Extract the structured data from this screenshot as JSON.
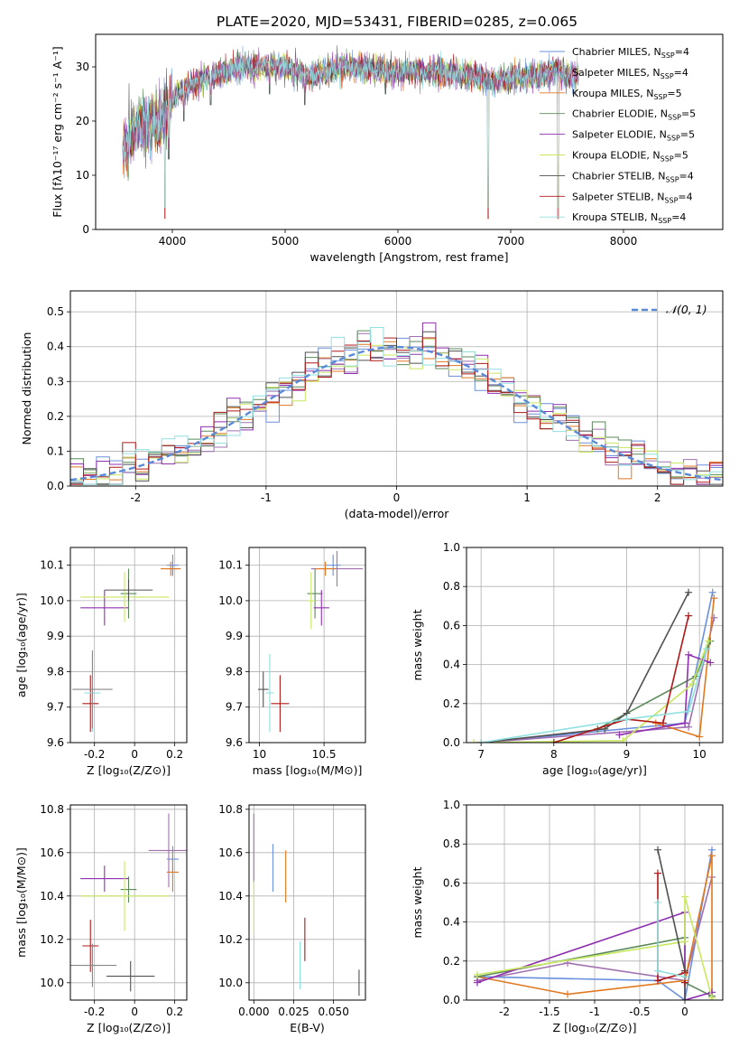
{
  "figure_title": "PLATE=2020, MJD=53431, FIBERID=0285, z=0.065",
  "series": [
    {
      "name": "Chabrier MILES, N",
      "sub": "SSP",
      "suffix": "=4",
      "color": "#6a8fdc"
    },
    {
      "name": "Salpeter MILES, N",
      "sub": "SSP",
      "suffix": "=4",
      "color": "#a070b0"
    },
    {
      "name": "Kroupa MILES, N",
      "sub": "SSP",
      "suffix": "=5",
      "color": "#e07820"
    },
    {
      "name": "Chabrier ELODIE, N",
      "sub": "SSP",
      "suffix": "=5",
      "color": "#5a8a5a"
    },
    {
      "name": "Salpeter ELODIE, N",
      "sub": "SSP",
      "suffix": "=5",
      "color": "#9030b0"
    },
    {
      "name": "Kroupa ELODIE, N",
      "sub": "SSP",
      "suffix": "=5",
      "color": "#c8e860"
    },
    {
      "name": "Chabrier STELIB, N",
      "sub": "SSP",
      "suffix": "=4",
      "color": "#505050"
    },
    {
      "name": "Salpeter STELIB, N",
      "sub": "SSP",
      "suffix": "=4",
      "color": "#b01818"
    },
    {
      "name": "Kroupa STELIB, N",
      "sub": "SSP",
      "suffix": "=4",
      "color": "#90e0e0"
    }
  ],
  "chart_data": [
    {
      "id": "spectrum",
      "type": "line",
      "xlabel": "wavelength [Angstrom, rest frame]",
      "ylabel": "Flux [fλ10⁻¹⁷ erg cm⁻² s⁻¹ A⁻¹]",
      "xlim": [
        3320,
        8880
      ],
      "ylim": [
        0,
        36
      ],
      "xticks": [
        4000,
        5000,
        6000,
        7000,
        8000
      ],
      "yticks": [
        0,
        10,
        20,
        30
      ],
      "grid": false,
      "legend": "upper-right",
      "continuum_points": [
        [
          3560,
          15
        ],
        [
          3700,
          19
        ],
        [
          3900,
          20
        ],
        [
          4000,
          24
        ],
        [
          4100,
          26
        ],
        [
          4300,
          28
        ],
        [
          4600,
          30
        ],
        [
          5000,
          30
        ],
        [
          5200,
          28
        ],
        [
          5500,
          30
        ],
        [
          6000,
          29
        ],
        [
          6500,
          29
        ],
        [
          6800,
          27.5
        ],
        [
          7100,
          28
        ],
        [
          7400,
          29
        ],
        [
          7600,
          28
        ]
      ],
      "line_dips": [
        [
          3933,
          0
        ],
        [
          3968,
          13
        ],
        [
          4102,
          20
        ],
        [
          4340,
          23
        ],
        [
          4861,
          25
        ],
        [
          5175,
          23
        ],
        [
          5890,
          25
        ],
        [
          6563,
          26
        ],
        [
          6800,
          0
        ],
        [
          7420,
          0
        ]
      ]
    },
    {
      "id": "residuals",
      "type": "area",
      "xlabel": "(data-model)/error",
      "ylabel": "Normed distribution",
      "xlim": [
        -2.5,
        2.5
      ],
      "ylim": [
        0,
        0.56
      ],
      "xticks": [
        -2,
        -1,
        0,
        1,
        2
      ],
      "yticks": [
        0.0,
        0.1,
        0.2,
        0.3,
        0.4,
        0.5
      ],
      "grid": true,
      "legend": "upper-right",
      "reference": {
        "label": "𝒩(0, 1)",
        "color": "#5a8ad8"
      },
      "histogram_bins": [
        -2.5,
        2.5,
        0.1
      ]
    },
    {
      "id": "age_vs_Z",
      "type": "scatter",
      "xlabel": "Z [log₁₀(Z/Z⊙)]",
      "ylabel": "age  [log₁₀(age/yr)]",
      "xlim": [
        -0.32,
        0.26
      ],
      "ylim": [
        9.6,
        10.15
      ],
      "xticks": [
        -0.2,
        0.0,
        0.2
      ],
      "yticks": [
        9.6,
        9.7,
        9.8,
        9.9,
        10.0,
        10.1
      ],
      "grid": true,
      "points": [
        {
          "s": 0,
          "x": 0.19,
          "y": 10.1,
          "xerr": 0.03,
          "yerr": 0.03
        },
        {
          "s": 1,
          "x": 0.19,
          "y": 10.09,
          "xerr": 0.03,
          "yerr": 0.02
        },
        {
          "s": 2,
          "x": 0.18,
          "y": 10.09,
          "xerr": 0.05,
          "yerr": 0.02
        },
        {
          "s": 3,
          "x": -0.03,
          "y": 10.02,
          "xerr": 0.04,
          "yerr": 0.07
        },
        {
          "s": 4,
          "x": -0.15,
          "y": 9.98,
          "xerr": 0.12,
          "yerr": 0.05
        },
        {
          "s": 5,
          "x": -0.05,
          "y": 10.01,
          "xerr": 0.22,
          "yerr": 0.07
        },
        {
          "s": 6,
          "x": -0.03,
          "y": 10.03,
          "xerr": 0.12,
          "yerr": 0.03
        },
        {
          "s": 7,
          "x": -0.22,
          "y": 9.71,
          "xerr": 0.04,
          "yerr": 0.08
        },
        {
          "s": 8,
          "x": -0.21,
          "y": 9.74,
          "xerr": 0.04,
          "yerr": 0.11
        },
        {
          "s": 9,
          "x": -0.21,
          "y": 9.75,
          "xerr": 0.1,
          "yerr": 0.11
        }
      ]
    },
    {
      "id": "age_vs_mass",
      "type": "scatter",
      "xlabel": "mass [log₁₀(M/M⊙)]",
      "ylabel": "",
      "xlim": [
        9.92,
        10.82
      ],
      "ylim": [
        9.6,
        10.15
      ],
      "xticks": [
        10.0,
        10.5
      ],
      "yticks": [
        9.6,
        9.7,
        9.8,
        9.9,
        10.0,
        10.1
      ],
      "grid": true,
      "points": [
        {
          "s": 0,
          "x": 10.57,
          "y": 10.1,
          "xerr": 0.06,
          "yerr": 0.03
        },
        {
          "s": 1,
          "x": 10.6,
          "y": 10.09,
          "xerr": 0.2,
          "yerr": 0.05
        },
        {
          "s": 2,
          "x": 10.51,
          "y": 10.09,
          "xerr": 0.08,
          "yerr": 0.02
        },
        {
          "s": 3,
          "x": 10.43,
          "y": 10.02,
          "xerr": 0.06,
          "yerr": 0.07
        },
        {
          "s": 4,
          "x": 10.48,
          "y": 9.98,
          "xerr": 0.06,
          "yerr": 0.05
        },
        {
          "s": 5,
          "x": 10.4,
          "y": 10.0,
          "xerr": 0.03,
          "yerr": 0.08
        },
        {
          "s": 6,
          "x": 10.03,
          "y": 9.75,
          "xerr": 0.04,
          "yerr": 0.05
        },
        {
          "s": 7,
          "x": 10.16,
          "y": 9.71,
          "xerr": 0.07,
          "yerr": 0.08
        },
        {
          "s": 8,
          "x": 10.08,
          "y": 9.74,
          "xerr": 0.03,
          "yerr": 0.11
        }
      ]
    },
    {
      "id": "weight_vs_age",
      "type": "line",
      "xlabel": "age  [log₁₀(age/yr)]",
      "ylabel": "mass weight",
      "xlim": [
        6.8,
        10.32
      ],
      "ylim": [
        0,
        1.0
      ],
      "xticks": [
        7,
        8,
        9,
        10
      ],
      "yticks": [
        0.0,
        0.2,
        0.4,
        0.6,
        0.8,
        1.0
      ],
      "grid": true,
      "lines": [
        {
          "s": 0,
          "x": [
            7.0,
            9.8,
            10.18
          ],
          "y": [
            0.0,
            0.1,
            0.77
          ]
        },
        {
          "s": 1,
          "x": [
            7.0,
            9.85,
            10.2
          ],
          "y": [
            0.0,
            0.08,
            0.64
          ]
        },
        {
          "s": 2,
          "x": [
            9.4,
            10.0,
            10.2
          ],
          "y": [
            0.1,
            0.03,
            0.74
          ]
        },
        {
          "s": 3,
          "x": [
            8.6,
            9.95,
            10.15
          ],
          "y": [
            0.07,
            0.34,
            0.52
          ]
        },
        {
          "s": 4,
          "x": [
            8.9,
            9.8,
            9.85,
            10.15
          ],
          "y": [
            0.04,
            0.1,
            0.45,
            0.41
          ]
        },
        {
          "s": 5,
          "x": [
            6.9,
            8.95,
            9.9,
            10.12
          ],
          "y": [
            0.0,
            0.01,
            0.3,
            0.52
          ]
        },
        {
          "s": 6,
          "x": [
            7.0,
            8.7,
            9.0,
            9.85
          ],
          "y": [
            0.0,
            0.07,
            0.15,
            0.77
          ]
        },
        {
          "s": 7,
          "x": [
            8.0,
            9.0,
            9.5,
            9.85
          ],
          "y": [
            0.0,
            0.12,
            0.1,
            0.65
          ]
        },
        {
          "s": 8,
          "x": [
            7.0,
            9.0,
            9.85,
            10.1
          ],
          "y": [
            0.0,
            0.12,
            0.16,
            0.48
          ]
        }
      ]
    },
    {
      "id": "mass_vs_Z",
      "type": "scatter",
      "xlabel": "Z [log₁₀(Z/Z⊙)]",
      "ylabel": "mass [log₁₀(M/M⊙)]",
      "xlim": [
        -0.32,
        0.26
      ],
      "ylim": [
        9.92,
        10.82
      ],
      "xticks": [
        -0.2,
        0.0,
        0.2
      ],
      "yticks": [
        10.0,
        10.2,
        10.4,
        10.6,
        10.8
      ],
      "grid": true,
      "points": [
        {
          "s": 0,
          "x": 0.19,
          "y": 10.57,
          "xerr": 0.03,
          "yerr": 0.06
        },
        {
          "s": 1,
          "x": 0.17,
          "y": 10.61,
          "xerr": 0.1,
          "yerr": 0.17
        },
        {
          "s": 2,
          "x": 0.19,
          "y": 10.51,
          "xerr": 0.03,
          "yerr": 0.09
        },
        {
          "s": 3,
          "x": -0.03,
          "y": 10.43,
          "xerr": 0.04,
          "yerr": 0.06
        },
        {
          "s": 4,
          "x": -0.15,
          "y": 10.48,
          "xerr": 0.12,
          "yerr": 0.06
        },
        {
          "s": 5,
          "x": -0.05,
          "y": 10.4,
          "xerr": 0.22,
          "yerr": 0.16
        },
        {
          "s": 6,
          "x": -0.02,
          "y": 10.03,
          "xerr": 0.12,
          "yerr": 0.07
        },
        {
          "s": 7,
          "x": -0.22,
          "y": 10.17,
          "xerr": 0.04,
          "yerr": 0.12
        },
        {
          "s": 8,
          "x": -0.21,
          "y": 10.08,
          "xerr": 0.04,
          "yerr": 0.06
        },
        {
          "s": 9,
          "x": -0.21,
          "y": 10.08,
          "xerr": 0.12,
          "yerr": 0.1
        }
      ]
    },
    {
      "id": "mass_vs_EBV",
      "type": "scatter",
      "xlabel": "E(B-V)",
      "ylabel": "",
      "xlim": [
        -0.003,
        0.07
      ],
      "ylim": [
        9.92,
        10.82
      ],
      "xticks": [
        0.0,
        0.025,
        0.05
      ],
      "xtick_labels": [
        "0.000",
        "0.025",
        "0.050"
      ],
      "yticks": [
        10.0,
        10.2,
        10.4,
        10.6,
        10.8
      ],
      "grid": true,
      "points": [
        {
          "s": 1,
          "x": 0.0,
          "y": 10.62,
          "xerr": 0.0,
          "yerr": 0.16
        },
        {
          "s": 0,
          "x": 0.012,
          "y": 10.53,
          "xerr": 0.0,
          "yerr": 0.11
        },
        {
          "s": 2,
          "x": 0.02,
          "y": 10.49,
          "xerr": 0.0,
          "yerr": 0.12
        },
        {
          "s": 5,
          "x": 0.0,
          "y": 10.35,
          "xerr": 0.0,
          "yerr": 0.12
        },
        {
          "s": 7,
          "x": 0.032,
          "y": 10.2,
          "xerr": 0.0,
          "yerr": 0.1
        },
        {
          "s": 8,
          "x": 0.029,
          "y": 10.08,
          "xerr": 0.0,
          "yerr": 0.11
        },
        {
          "s": 6,
          "x": 0.066,
          "y": 10.0,
          "xerr": 0.0,
          "yerr": 0.06
        }
      ]
    },
    {
      "id": "weight_vs_Z",
      "type": "line",
      "xlabel": "Z [log₁₀(Z/Z⊙)]",
      "ylabel": "mass weight",
      "xlim": [
        -2.42,
        0.42
      ],
      "ylim": [
        0,
        1.0
      ],
      "xticks": [
        -2.0,
        -1.5,
        -1.0,
        -0.5,
        0.0
      ],
      "yticks": [
        0.0,
        0.2,
        0.4,
        0.6,
        0.8,
        1.0
      ],
      "grid": true,
      "lines": [
        {
          "s": 0,
          "x": [
            -2.3,
            -0.3,
            0.0,
            0.3
          ],
          "y": [
            0.12,
            0.1,
            0.0,
            0.77
          ]
        },
        {
          "s": 1,
          "x": [
            -2.3,
            -1.3,
            0.0,
            0.3
          ],
          "y": [
            0.1,
            0.19,
            0.1,
            0.63
          ]
        },
        {
          "s": 2,
          "x": [
            -2.3,
            -1.3,
            0.0,
            0.3,
            0.3
          ],
          "y": [
            0.12,
            0.03,
            0.1,
            0.74,
            0.02
          ]
        },
        {
          "s": 3,
          "x": [
            -2.3,
            0.0,
            0.0,
            0.3
          ],
          "y": [
            0.12,
            0.32,
            0.09,
            0.02
          ]
        },
        {
          "s": 4,
          "x": [
            -2.3,
            0.0,
            0.0,
            0.3
          ],
          "y": [
            0.09,
            0.45,
            0.0,
            0.04
          ]
        },
        {
          "s": 5,
          "x": [
            -2.3,
            0.0,
            0.0,
            0.3
          ],
          "y": [
            0.13,
            0.3,
            0.53,
            0.01
          ]
        },
        {
          "s": 6,
          "x": [
            -0.3,
            0.0,
            0.0
          ],
          "y": [
            0.77,
            0.15,
            0.0
          ]
        },
        {
          "s": 7,
          "x": [
            -0.3,
            -0.3,
            0.0,
            0.0
          ],
          "y": [
            0.65,
            0.1,
            0.14,
            0.09
          ]
        },
        {
          "s": 8,
          "x": [
            -0.3,
            -0.3,
            0.0
          ],
          "y": [
            0.5,
            0.15,
            0.12
          ]
        }
      ]
    }
  ]
}
